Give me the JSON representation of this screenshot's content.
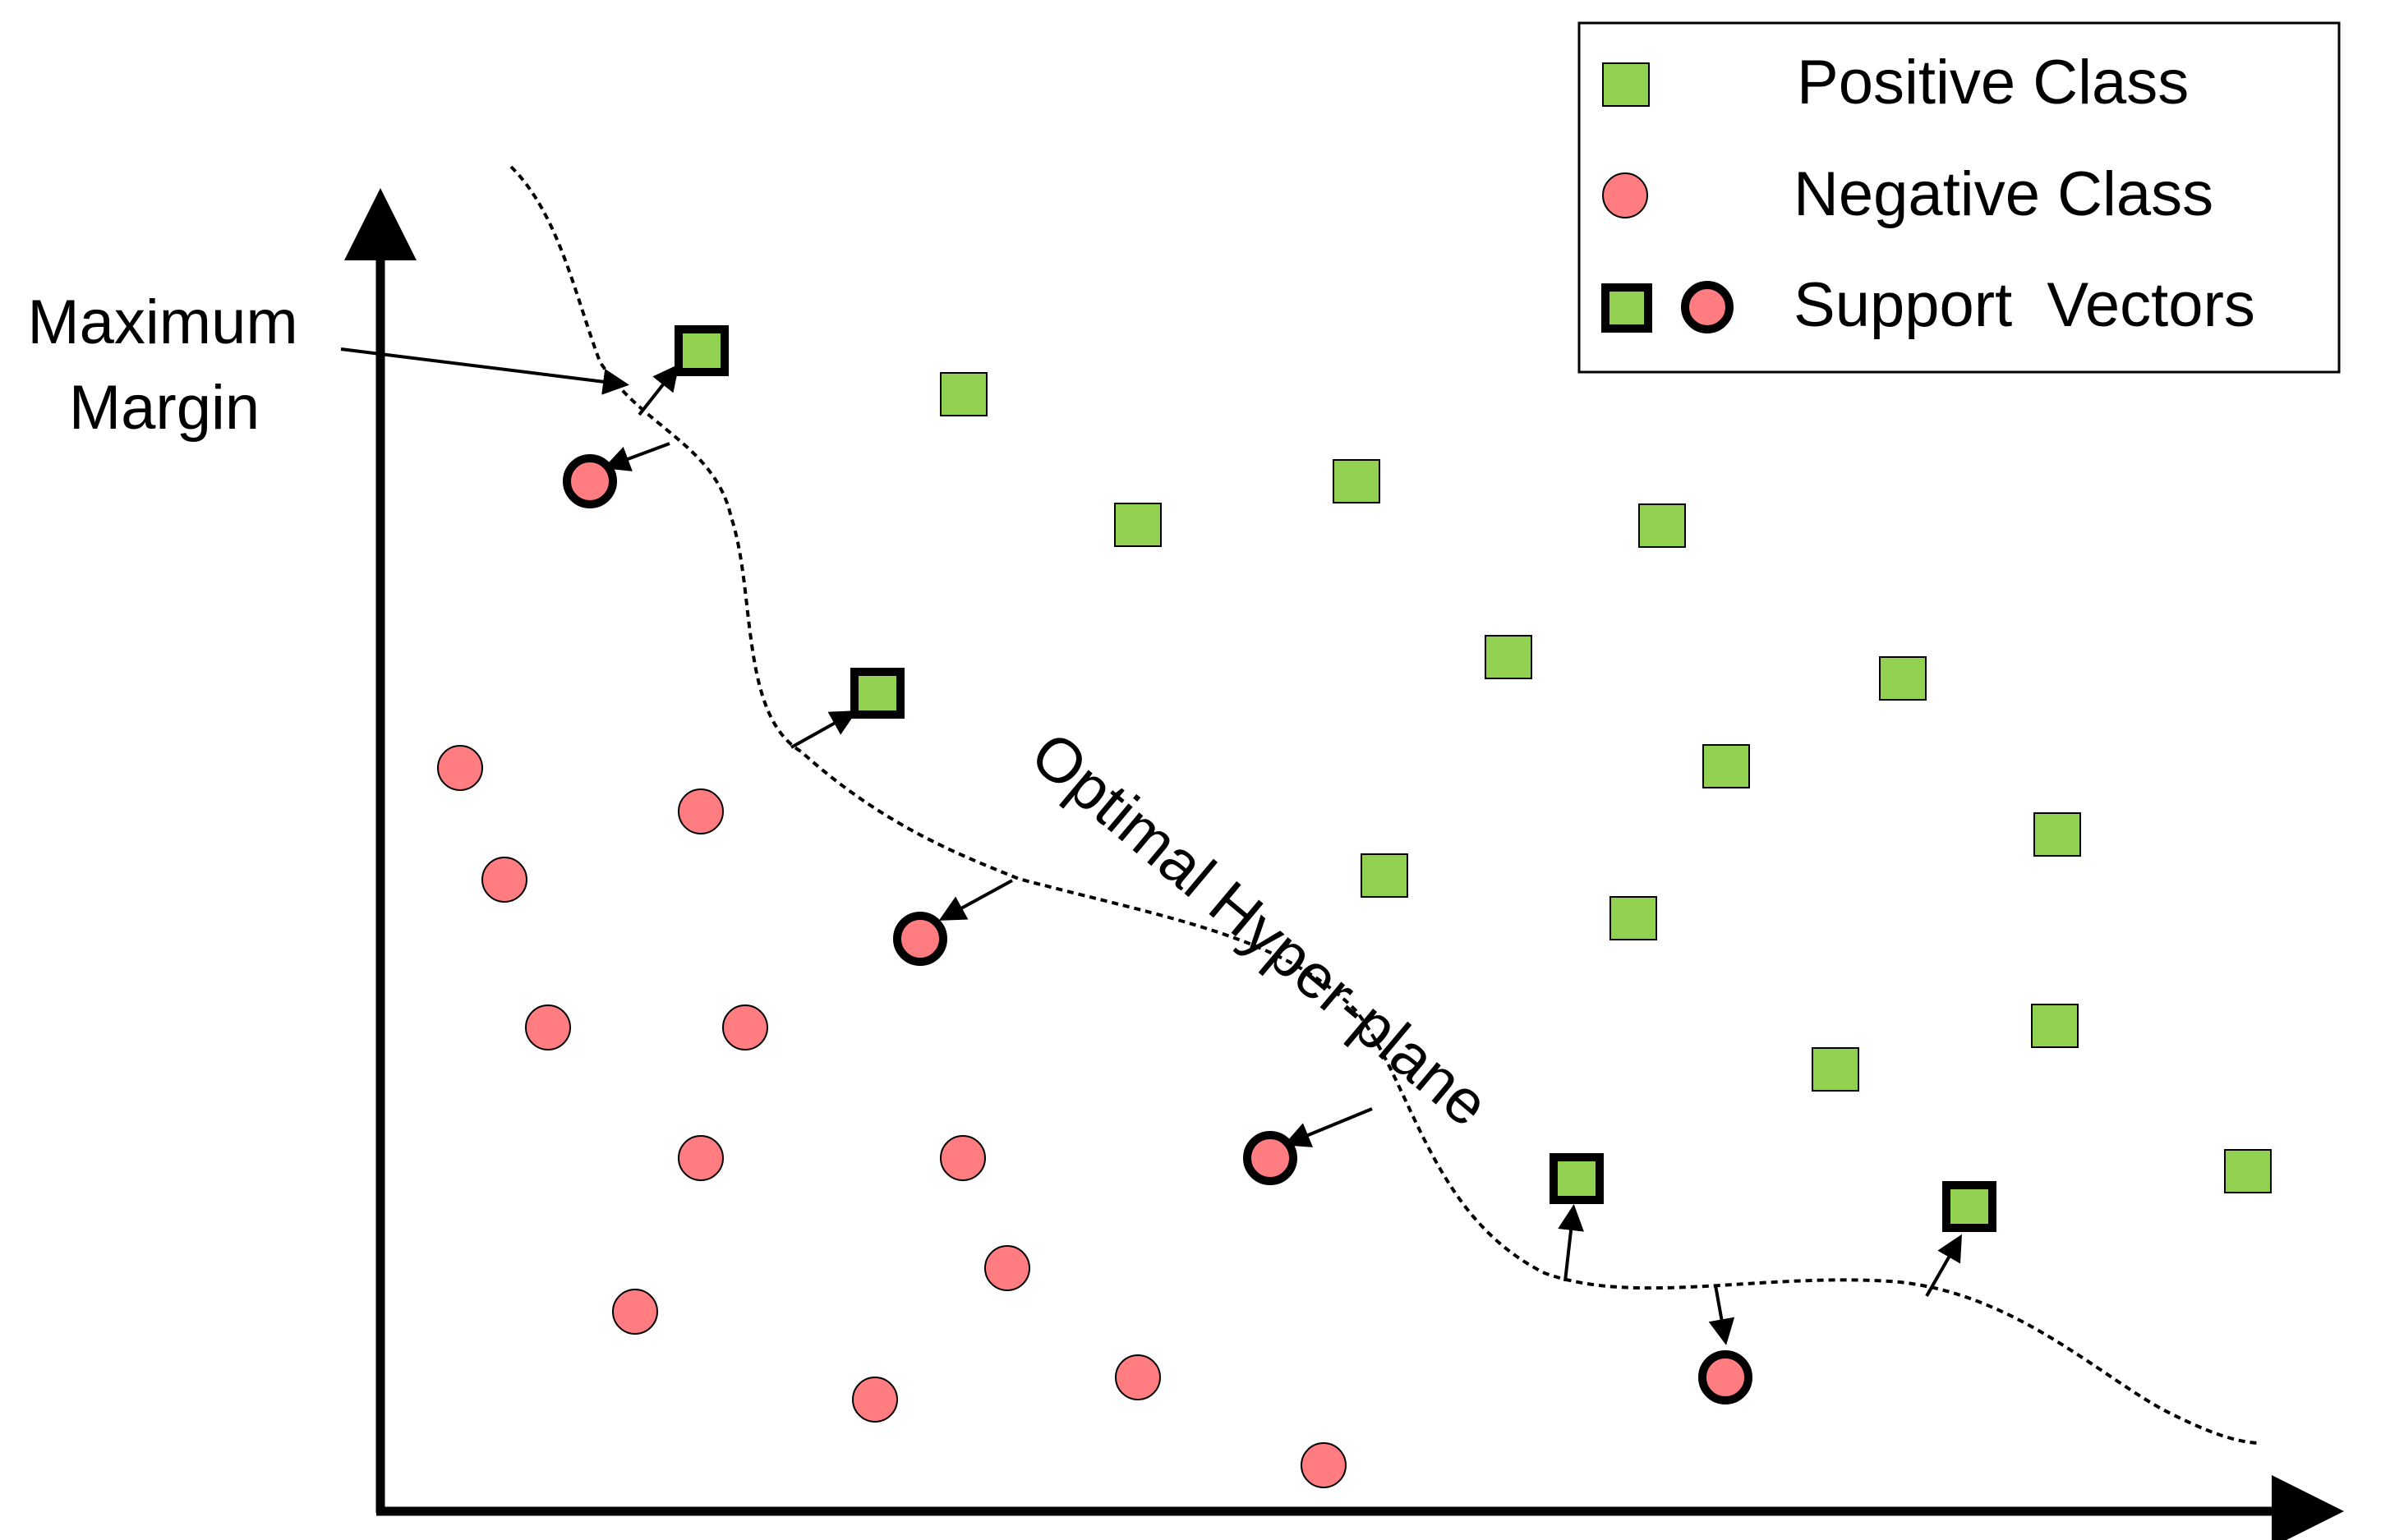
{
  "legend": {
    "positive_label": "Positive Class",
    "negative_label": "Negative Class",
    "support_label": "Support  Vectors"
  },
  "annotations": {
    "margin_line1": "Maximum",
    "margin_line2": "Margin",
    "hyperplane_label": "Optimal Hyper-plane"
  },
  "colors": {
    "positive_fill": "#92D050",
    "negative_fill": "#FF7C80",
    "stroke": "#000000",
    "background": "#FFFFFF"
  }
}
